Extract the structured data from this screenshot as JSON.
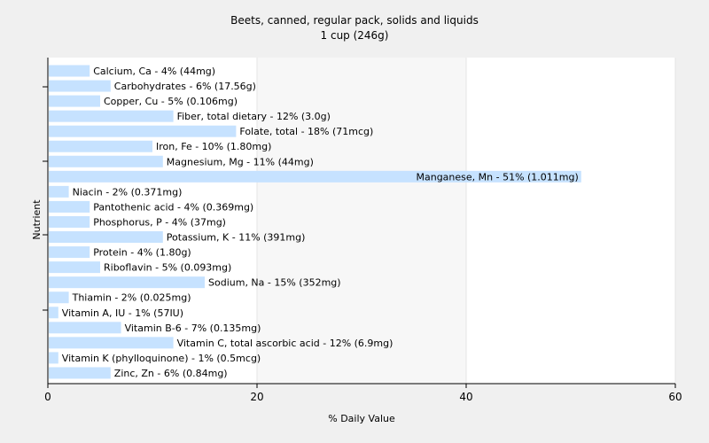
{
  "chart_data": {
    "type": "bar",
    "orientation": "horizontal",
    "title": "Beets, canned, regular pack, solids and liquids",
    "subtitle": "1 cup (246g)",
    "xlabel": "% Daily Value",
    "ylabel": "Nutrient",
    "xlim": [
      0,
      60
    ],
    "xticks": [
      0,
      20,
      40,
      60
    ],
    "grid": true,
    "bar_color": "#c6e2ff",
    "categories": [
      "Calcium, Ca",
      "Carbohydrates",
      "Copper, Cu",
      "Fiber, total dietary",
      "Folate, total",
      "Iron, Fe",
      "Magnesium, Mg",
      "Manganese, Mn",
      "Niacin",
      "Pantothenic acid",
      "Phosphorus, P",
      "Potassium, K",
      "Protein",
      "Riboflavin",
      "Sodium, Na",
      "Thiamin",
      "Vitamin A, IU",
      "Vitamin B-6",
      "Vitamin C, total ascorbic acid",
      "Vitamin K (phylloquinone)",
      "Zinc, Zn"
    ],
    "values": [
      4,
      6,
      5,
      12,
      18,
      10,
      11,
      51,
      2,
      4,
      4,
      11,
      4,
      5,
      15,
      2,
      1,
      7,
      12,
      1,
      6
    ],
    "labels": [
      "Calcium, Ca - 4% (44mg)",
      "Carbohydrates - 6% (17.56g)",
      "Copper, Cu - 5% (0.106mg)",
      "Fiber, total dietary - 12% (3.0g)",
      "Folate, total - 18% (71mcg)",
      "Iron, Fe - 10% (1.80mg)",
      "Magnesium, Mg - 11% (44mg)",
      "Manganese, Mn - 51% (1.011mg)",
      "Niacin - 2% (0.371mg)",
      "Pantothenic acid - 4% (0.369mg)",
      "Phosphorus, P - 4% (37mg)",
      "Potassium, K - 11% (391mg)",
      "Protein - 4% (1.80g)",
      "Riboflavin - 5% (0.093mg)",
      "Sodium, Na - 15% (352mg)",
      "Thiamin - 2% (0.025mg)",
      "Vitamin A, IU - 1% (57IU)",
      "Vitamin B-6 - 7% (0.135mg)",
      "Vitamin C, total ascorbic acid - 12% (6.9mg)",
      "Vitamin K (phylloquinone) - 1% (0.5mcg)",
      "Zinc, Zn - 6% (0.84mg)"
    ]
  }
}
